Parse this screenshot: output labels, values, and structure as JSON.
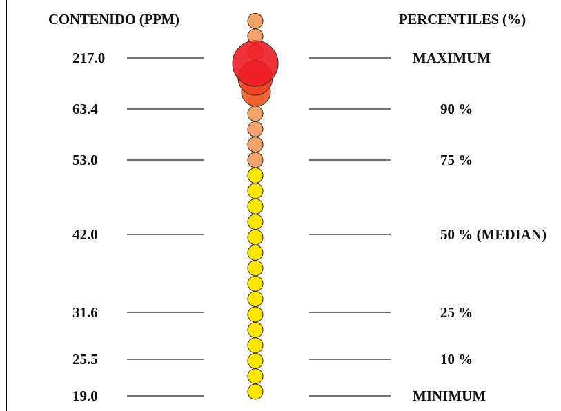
{
  "headers": {
    "left": "CONTENIDO (PPM)",
    "right": "PERCENTILES (%)"
  },
  "chart_data": {
    "type": "scatter",
    "title": "",
    "xlabel": "CONTENIDO (PPM)",
    "ylabel": "PERCENTILES (%)",
    "levels": [
      {
        "value": "217.0",
        "percentile": "MAXIMUM"
      },
      {
        "value": "63.4",
        "percentile": "90 %"
      },
      {
        "value": "53.0",
        "percentile": "75 %"
      },
      {
        "value": "42.0",
        "percentile": "50 % (MEDIAN)"
      },
      {
        "value": "31.6",
        "percentile": "25 %"
      },
      {
        "value": "25.5",
        "percentile": "10 %"
      },
      {
        "value": "19.0",
        "percentile": "MINIMUM"
      }
    ],
    "points": [
      {
        "rank": 1,
        "class": "max",
        "color": "#EE1C25"
      },
      {
        "rank": 2,
        "class": "top",
        "color": "#EF4123"
      },
      {
        "rank": 3,
        "class": "upper",
        "color": "#F05A28"
      },
      {
        "rank": 4,
        "class": "high",
        "color": "#F5A36C"
      },
      {
        "rank": 5,
        "class": "high",
        "color": "#F5A36C"
      },
      {
        "rank": 6,
        "class": "high",
        "color": "#F5A36C"
      },
      {
        "rank": 7,
        "class": "high",
        "color": "#F5A36C"
      },
      {
        "rank": 8,
        "class": "high",
        "color": "#F5A36C"
      },
      {
        "rank": 9,
        "class": "high",
        "color": "#F5A36C"
      },
      {
        "rank": 10,
        "class": "high",
        "color": "#F5A36C"
      },
      {
        "rank": 11,
        "class": "high",
        "color": "#F5A36C"
      },
      {
        "rank": 12,
        "class": "high",
        "color": "#F5A36C"
      },
      {
        "rank": 13,
        "class": "high",
        "color": "#F5A36C"
      },
      {
        "rank": 14,
        "class": "low",
        "color": "#FFE600"
      },
      {
        "rank": 15,
        "class": "low",
        "color": "#FFE600"
      },
      {
        "rank": 16,
        "class": "low",
        "color": "#FFE600"
      },
      {
        "rank": 17,
        "class": "low",
        "color": "#FFE600"
      },
      {
        "rank": 18,
        "class": "low",
        "color": "#FFE600"
      },
      {
        "rank": 19,
        "class": "low",
        "color": "#FFE600"
      },
      {
        "rank": 20,
        "class": "low",
        "color": "#FFE600"
      },
      {
        "rank": 21,
        "class": "low",
        "color": "#FFE600"
      },
      {
        "rank": 22,
        "class": "low",
        "color": "#FFE600"
      },
      {
        "rank": 23,
        "class": "low",
        "color": "#FFE600"
      },
      {
        "rank": 24,
        "class": "low",
        "color": "#FFE600"
      },
      {
        "rank": 25,
        "class": "low",
        "color": "#FFE600"
      },
      {
        "rank": 26,
        "class": "low",
        "color": "#FFE600"
      },
      {
        "rank": 27,
        "class": "low",
        "color": "#FFE600"
      },
      {
        "rank": 28,
        "class": "low",
        "color": "#FFE600"
      }
    ]
  }
}
